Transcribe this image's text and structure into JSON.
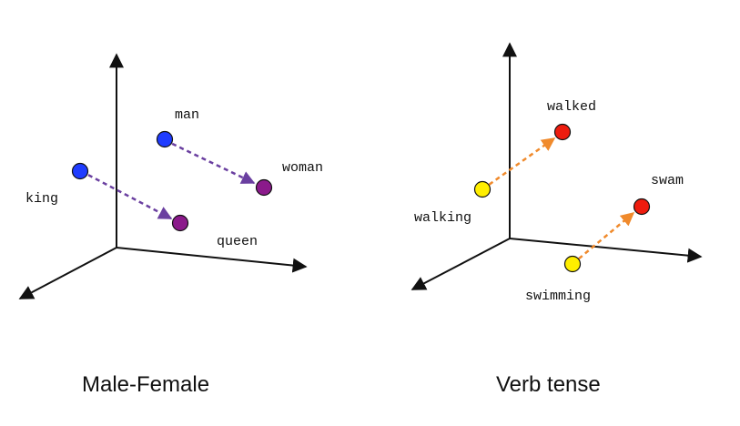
{
  "panels": {
    "male_female": {
      "caption": "Male-Female",
      "labels": {
        "man": "man",
        "woman": "woman",
        "king": "king",
        "queen": "queen"
      },
      "colors": {
        "masculine": "#1f3cff",
        "feminine": "#8b1a8b",
        "arrow": "#6a3fa0"
      }
    },
    "verb_tense": {
      "caption": "Verb tense",
      "labels": {
        "walked": "walked",
        "swam": "swam",
        "walking": "walking",
        "swimming": "swimming"
      },
      "colors": {
        "present": "#ffee00",
        "past": "#ee1c0e",
        "arrow": "#f08a2c"
      }
    }
  }
}
